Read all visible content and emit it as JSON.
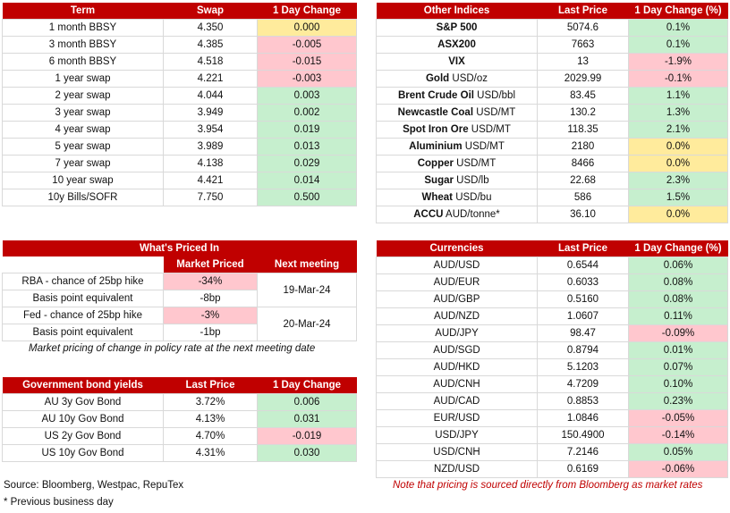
{
  "rates": {
    "headers": [
      "Term",
      "Swap",
      "1 Day Change"
    ],
    "rows": [
      {
        "term": "1 month BBSY",
        "swap": "4.350",
        "change": "0.000",
        "status": "neutral"
      },
      {
        "term": "3 month BBSY",
        "swap": "4.385",
        "change": "-0.005",
        "status": "down"
      },
      {
        "term": "6 month BBSY",
        "swap": "4.518",
        "change": "-0.015",
        "status": "down"
      },
      {
        "term": "1 year swap",
        "swap": "4.221",
        "change": "-0.003",
        "status": "down"
      },
      {
        "term": "2 year swap",
        "swap": "4.044",
        "change": "0.003",
        "status": "up"
      },
      {
        "term": "3 year swap",
        "swap": "3.949",
        "change": "0.002",
        "status": "up"
      },
      {
        "term": "4 year swap",
        "swap": "3.954",
        "change": "0.019",
        "status": "up"
      },
      {
        "term": "5 year swap",
        "swap": "3.989",
        "change": "0.013",
        "status": "up"
      },
      {
        "term": "7 year swap",
        "swap": "4.138",
        "change": "0.029",
        "status": "up"
      },
      {
        "term": "10 year swap",
        "swap": "4.421",
        "change": "0.014",
        "status": "up"
      },
      {
        "term": "10y Bills/SOFR",
        "swap": "7.750",
        "change": "0.500",
        "status": "up"
      }
    ]
  },
  "indices": {
    "headers": [
      "Other Indices",
      "Last Price",
      "1 Day Change (%)"
    ],
    "rows": [
      {
        "name": "S&P 500",
        "unit": "",
        "price": "5074.6",
        "change": "0.1%",
        "status": "up"
      },
      {
        "name": "ASX200",
        "unit": "",
        "price": "7663",
        "change": "0.1%",
        "status": "up"
      },
      {
        "name": "VIX",
        "unit": "",
        "price": "13",
        "change": "-1.9%",
        "status": "down"
      },
      {
        "name": "Gold",
        "unit": "USD/oz",
        "price": "2029.99",
        "change": "-0.1%",
        "status": "down"
      },
      {
        "name": "Brent Crude Oil",
        "unit": "USD/bbl",
        "price": "83.45",
        "change": "1.1%",
        "status": "up"
      },
      {
        "name": "Newcastle Coal",
        "unit": "USD/MT",
        "price": "130.2",
        "change": "1.3%",
        "status": "up"
      },
      {
        "name": "Spot Iron Ore",
        "unit": "USD/MT",
        "price": "118.35",
        "change": "2.1%",
        "status": "up"
      },
      {
        "name": "Aluminium",
        "unit": "USD/MT",
        "price": "2180",
        "change": "0.0%",
        "status": "neutral"
      },
      {
        "name": "Copper",
        "unit": "USD/MT",
        "price": "8466",
        "change": "0.0%",
        "status": "neutral"
      },
      {
        "name": "Sugar",
        "unit": "USD/lb",
        "price": "22.68",
        "change": "2.3%",
        "status": "up"
      },
      {
        "name": "Wheat",
        "unit": "USD/bu",
        "price": "586",
        "change": "1.5%",
        "status": "up"
      },
      {
        "name": "ACCU",
        "unit": "AUD/tonne*",
        "price": "36.10",
        "change": "0.0%",
        "status": "neutral"
      }
    ]
  },
  "priced": {
    "title": "What's Priced In",
    "headers": [
      "Market Priced",
      "Next meeting"
    ],
    "rows": [
      {
        "label": "RBA - chance of 25bp hike",
        "value": "-34%",
        "status": "down"
      },
      {
        "label": "Basis point equivalent",
        "value": "-8bp",
        "status": "none"
      },
      {
        "label": "Fed - chance of 25bp hike",
        "value": "-3%",
        "status": "down"
      },
      {
        "label": "Basis point equivalent",
        "value": "-1bp",
        "status": "none"
      }
    ],
    "meetings": [
      "19-Mar-24",
      "20-Mar-24"
    ],
    "note": "Market pricing of change in policy rate at the next meeting date"
  },
  "bonds": {
    "headers": [
      "Government bond yields",
      "Last Price",
      "1 Day Change"
    ],
    "rows": [
      {
        "name": "AU 3y Gov Bond",
        "price": "3.72%",
        "change": "0.006",
        "status": "up"
      },
      {
        "name": "AU 10y Gov Bond",
        "price": "4.13%",
        "change": "0.031",
        "status": "up"
      },
      {
        "name": "US 2y Gov Bond",
        "price": "4.70%",
        "change": "-0.019",
        "status": "down"
      },
      {
        "name": "US 10y Gov Bond",
        "price": "4.31%",
        "change": "0.030",
        "status": "up"
      }
    ]
  },
  "currencies": {
    "headers": [
      "Currencies",
      "Last Price",
      "1 Day Change (%)"
    ],
    "rows": [
      {
        "pair": "AUD/USD",
        "price": "0.6544",
        "change": "0.06%",
        "status": "up"
      },
      {
        "pair": "AUD/EUR",
        "price": "0.6033",
        "change": "0.08%",
        "status": "up"
      },
      {
        "pair": "AUD/GBP",
        "price": "0.5160",
        "change": "0.08%",
        "status": "up"
      },
      {
        "pair": "AUD/NZD",
        "price": "1.0607",
        "change": "0.11%",
        "status": "up"
      },
      {
        "pair": "AUD/JPY",
        "price": "98.47",
        "change": "-0.09%",
        "status": "down"
      },
      {
        "pair": "AUD/SGD",
        "price": "0.8794",
        "change": "0.01%",
        "status": "up"
      },
      {
        "pair": "AUD/HKD",
        "price": "5.1203",
        "change": "0.07%",
        "status": "up"
      },
      {
        "pair": "AUD/CNH",
        "price": "4.7209",
        "change": "0.10%",
        "status": "up"
      },
      {
        "pair": "AUD/CAD",
        "price": "0.8853",
        "change": "0.23%",
        "status": "up"
      },
      {
        "pair": "EUR/USD",
        "price": "1.0846",
        "change": "-0.05%",
        "status": "down"
      },
      {
        "pair": "USD/JPY",
        "price": "150.4900",
        "change": "-0.14%",
        "status": "down"
      },
      {
        "pair": "USD/CNH",
        "price": "7.2146",
        "change": "0.05%",
        "status": "up"
      },
      {
        "pair": "NZD/USD",
        "price": "0.6169",
        "change": "-0.06%",
        "status": "down"
      }
    ]
  },
  "footer": {
    "source": "Source: Bloomberg, Westpac, RepuTex",
    "asterisk": "* Previous business day",
    "pricing_note": "Note that pricing is sourced directly from Bloomberg as market rates"
  },
  "colors": {
    "header_bg": "#c00000",
    "up": "#c6efce",
    "down": "#ffc7ce",
    "neutral": "#ffeb9c"
  }
}
